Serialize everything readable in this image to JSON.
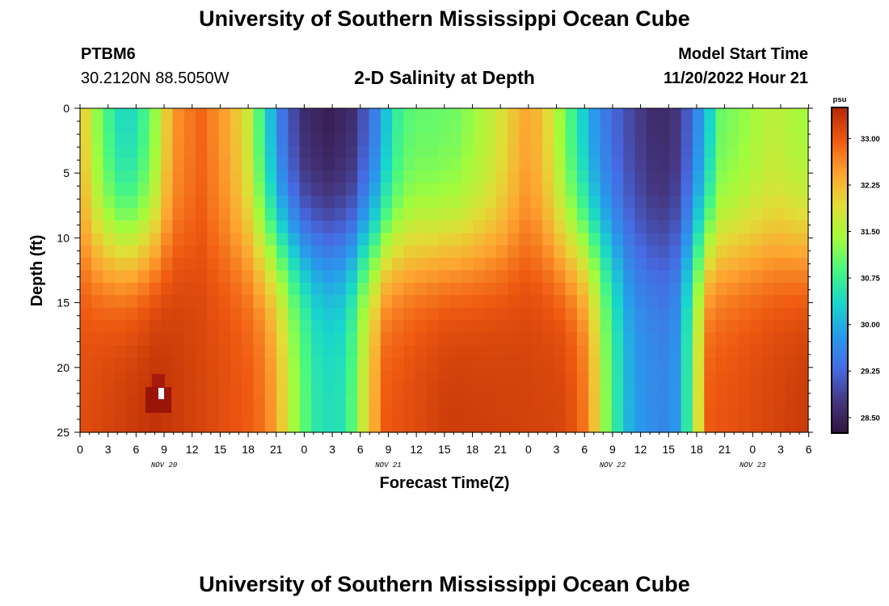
{
  "header": {
    "title": "University of Southern Mississippi Ocean Cube",
    "station_id": "PTBM6",
    "station_coords": "30.2120N  88.5050W",
    "plot_title": "2-D Salinity at Depth",
    "model_start_label": "Model Start Time",
    "model_start_value": "11/20/2022 Hour 21"
  },
  "footer": {
    "title": "University of Southern Mississippi Ocean Cube"
  },
  "chart_data": {
    "type": "heatmap",
    "title": "2-D Salinity at Depth",
    "xlabel": "Forecast Time(Z)",
    "ylabel": "Depth (ft)",
    "x_tick_labels": [
      "0",
      "3",
      "6",
      "9",
      "12",
      "15",
      "18",
      "21",
      "0",
      "3",
      "6",
      "9",
      "12",
      "15",
      "18",
      "21",
      "0",
      "3",
      "6",
      "9",
      "12",
      "15",
      "18",
      "21",
      "0",
      "3",
      "6"
    ],
    "day_labels": [
      {
        "label": "NOV 20",
        "hour": 9
      },
      {
        "label": "NOV 21",
        "hour": 33
      },
      {
        "label": "NOV 22",
        "hour": 57
      },
      {
        "label": "NOV 23",
        "hour": 72
      }
    ],
    "x_range_hours": [
      0,
      78
    ],
    "y_tick_labels": [
      "0",
      "5",
      "10",
      "15",
      "20",
      "25"
    ],
    "y_range_ft": [
      0,
      25
    ],
    "colorbar": {
      "unit": "psu",
      "range": [
        28.25,
        33.5
      ],
      "tick_labels": [
        "28.50",
        "29.25",
        "30.00",
        "30.75",
        "31.50",
        "32.25",
        "33.00"
      ]
    },
    "grid_columns": 63,
    "grid_rows": 26,
    "hour_step": 1.25,
    "depth_step_ft": 1,
    "profiles_description": "Salinity (psu) at depth 0 ft (surface) and depth 25 ft (bottom) at key forecast hours; intermediate depths follow a smooth transition.",
    "surface_key_hours": [
      0,
      1.5,
      4,
      6,
      8,
      10,
      13,
      16,
      18,
      19.5,
      21.5,
      24,
      27,
      29.5,
      32,
      34,
      36,
      38,
      41,
      45,
      48,
      50,
      52,
      54,
      56,
      59,
      62,
      64,
      66,
      68,
      69,
      71,
      73,
      75,
      78
    ],
    "surface_salinity": [
      32.3,
      31.4,
      30.4,
      30.4,
      31.2,
      32.5,
      32.9,
      32.4,
      31.8,
      30.8,
      29.5,
      28.6,
      28.4,
      28.6,
      29.5,
      30.6,
      31.0,
      31.0,
      31.1,
      31.7,
      32.4,
      32.2,
      31.3,
      30.4,
      29.6,
      29.0,
      28.6,
      28.6,
      29.2,
      30.2,
      31.0,
      31.2,
      31.4,
      31.6,
      31.4
    ],
    "bottom_key_hours": [
      0,
      8,
      18,
      20,
      21.5,
      23,
      24,
      25,
      26,
      28,
      29.5,
      31,
      33,
      40,
      52,
      54,
      55.5,
      56.5,
      57.5,
      58.5,
      59.5,
      60.5,
      61.5,
      63,
      64.5,
      65.5,
      66.5,
      68,
      78
    ],
    "bottom_salinity": [
      33.1,
      33.4,
      33.0,
      32.8,
      32.3,
      31.5,
      31.1,
      30.8,
      30.5,
      30.5,
      31.0,
      32.0,
      33.0,
      33.3,
      33.2,
      33.0,
      32.3,
      31.5,
      30.9,
      30.4,
      30.0,
      29.8,
      29.7,
      29.6,
      29.8,
      30.5,
      31.5,
      33.0,
      33.3
    ]
  }
}
